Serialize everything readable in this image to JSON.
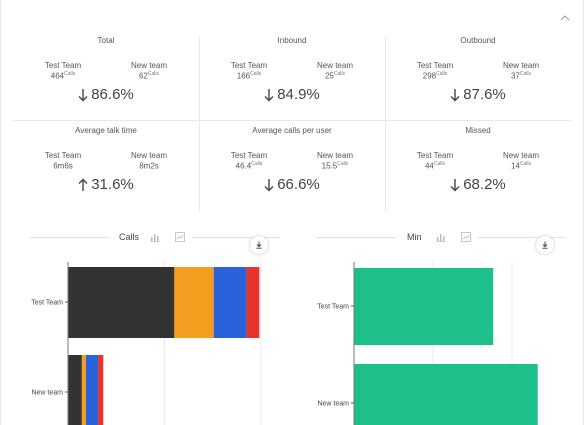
{
  "stats": [
    {
      "title": "Total",
      "left_team": "Test Team",
      "left_value": "464",
      "left_unit": "Calls",
      "right_team": "New team",
      "right_value": "62",
      "right_unit": "Calls",
      "direction": "down",
      "change": "86.6%"
    },
    {
      "title": "Inbound",
      "left_team": "Test Team",
      "left_value": "166",
      "left_unit": "Calls",
      "right_team": "New team",
      "right_value": "25",
      "right_unit": "Calls",
      "direction": "down",
      "change": "84.9%"
    },
    {
      "title": "Outbound",
      "left_team": "Test Team",
      "left_value": "298",
      "left_unit": "Calls",
      "right_team": "New team",
      "right_value": "37",
      "right_unit": "Calls",
      "direction": "down",
      "change": "87.6%"
    },
    {
      "title": "Average talk time",
      "left_team": "Test Team",
      "left_value": "6m6s",
      "left_unit": "",
      "right_team": "New team",
      "right_value": "8m2s",
      "right_unit": "",
      "direction": "up",
      "change": "31.6%"
    },
    {
      "title": "Average calls per user",
      "left_team": "Test Team",
      "left_value": "46.4",
      "left_unit": "Calls",
      "right_team": "New team",
      "right_value": "15.5",
      "right_unit": "Calls",
      "direction": "down",
      "change": "66.6%"
    },
    {
      "title": "Missed",
      "left_team": "Test Team",
      "left_value": "44",
      "left_unit": "Calls",
      "right_team": "New team",
      "right_value": "14",
      "right_unit": "Calls",
      "direction": "down",
      "change": "68.2%"
    }
  ],
  "icons": {
    "collapse": "chevron-up-icon",
    "bar_chart": "bar-chart-icon",
    "line_chart": "line-chart-icon",
    "download": "download-icon",
    "arrow_down": "arrow-down-icon",
    "arrow_up": "arrow-up-icon"
  },
  "colors": {
    "dark": "#333333",
    "orange": "#f59d1f",
    "blue": "#2a63d9",
    "red": "#e8322b",
    "green": "#1dbf8a",
    "grid": "#e8e8e8"
  },
  "calls_panel": {
    "title": "Calls"
  },
  "min_panel": {
    "title": "Min"
  },
  "chart_data": [
    {
      "type": "bar",
      "orientation": "horizontal",
      "stacked": true,
      "title": "Calls",
      "categories": [
        "Test Team",
        "New team"
      ],
      "series": [
        {
          "color": "#333333",
          "values": [
            184,
            24
          ]
        },
        {
          "color": "#f59d1f",
          "values": [
            68,
            7
          ]
        },
        {
          "color": "#2a63d9",
          "values": [
            57,
            21
          ]
        },
        {
          "color": "#e8322b",
          "values": [
            22,
            9
          ]
        }
      ],
      "xlim": [
        0,
        500
      ],
      "grid": true
    },
    {
      "type": "bar",
      "orientation": "horizontal",
      "title": "Min",
      "categories": [
        "Test Team",
        "New team"
      ],
      "series": [
        {
          "color": "#1dbf8a",
          "values": [
            47,
            62
          ]
        }
      ],
      "xlim": [
        0,
        80
      ],
      "grid": true
    }
  ]
}
